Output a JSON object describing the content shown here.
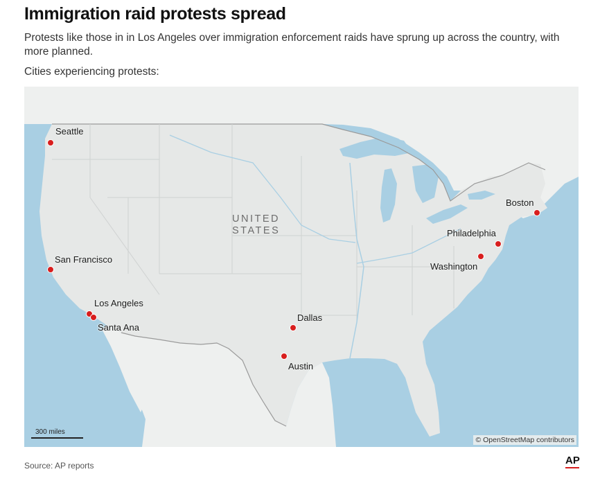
{
  "header": {
    "title": "Immigration raid protests spread",
    "subtitle": "Protests like those in in Los Angeles over immigration enforcement raids have sprung up across the country, with more planned.",
    "map_label": "Cities experiencing protests:"
  },
  "map": {
    "country_label_line1": "UNITED",
    "country_label_line2": "STATES",
    "scale_label": "300 miles",
    "attribution": "© OpenStreetMap contributors",
    "colors": {
      "water": "#a9cfe3",
      "land": "#eef0ef",
      "us_land": "#e6e8e7",
      "marker": "#d81e1e"
    },
    "cities": [
      {
        "name": "Seattle"
      },
      {
        "name": "San Francisco"
      },
      {
        "name": "Los Angeles"
      },
      {
        "name": "Santa Ana"
      },
      {
        "name": "Dallas"
      },
      {
        "name": "Austin"
      },
      {
        "name": "Boston"
      },
      {
        "name": "Philadelphia"
      },
      {
        "name": "Washington"
      }
    ]
  },
  "footer": {
    "source": "Source: AP reports",
    "logo": "AP"
  }
}
